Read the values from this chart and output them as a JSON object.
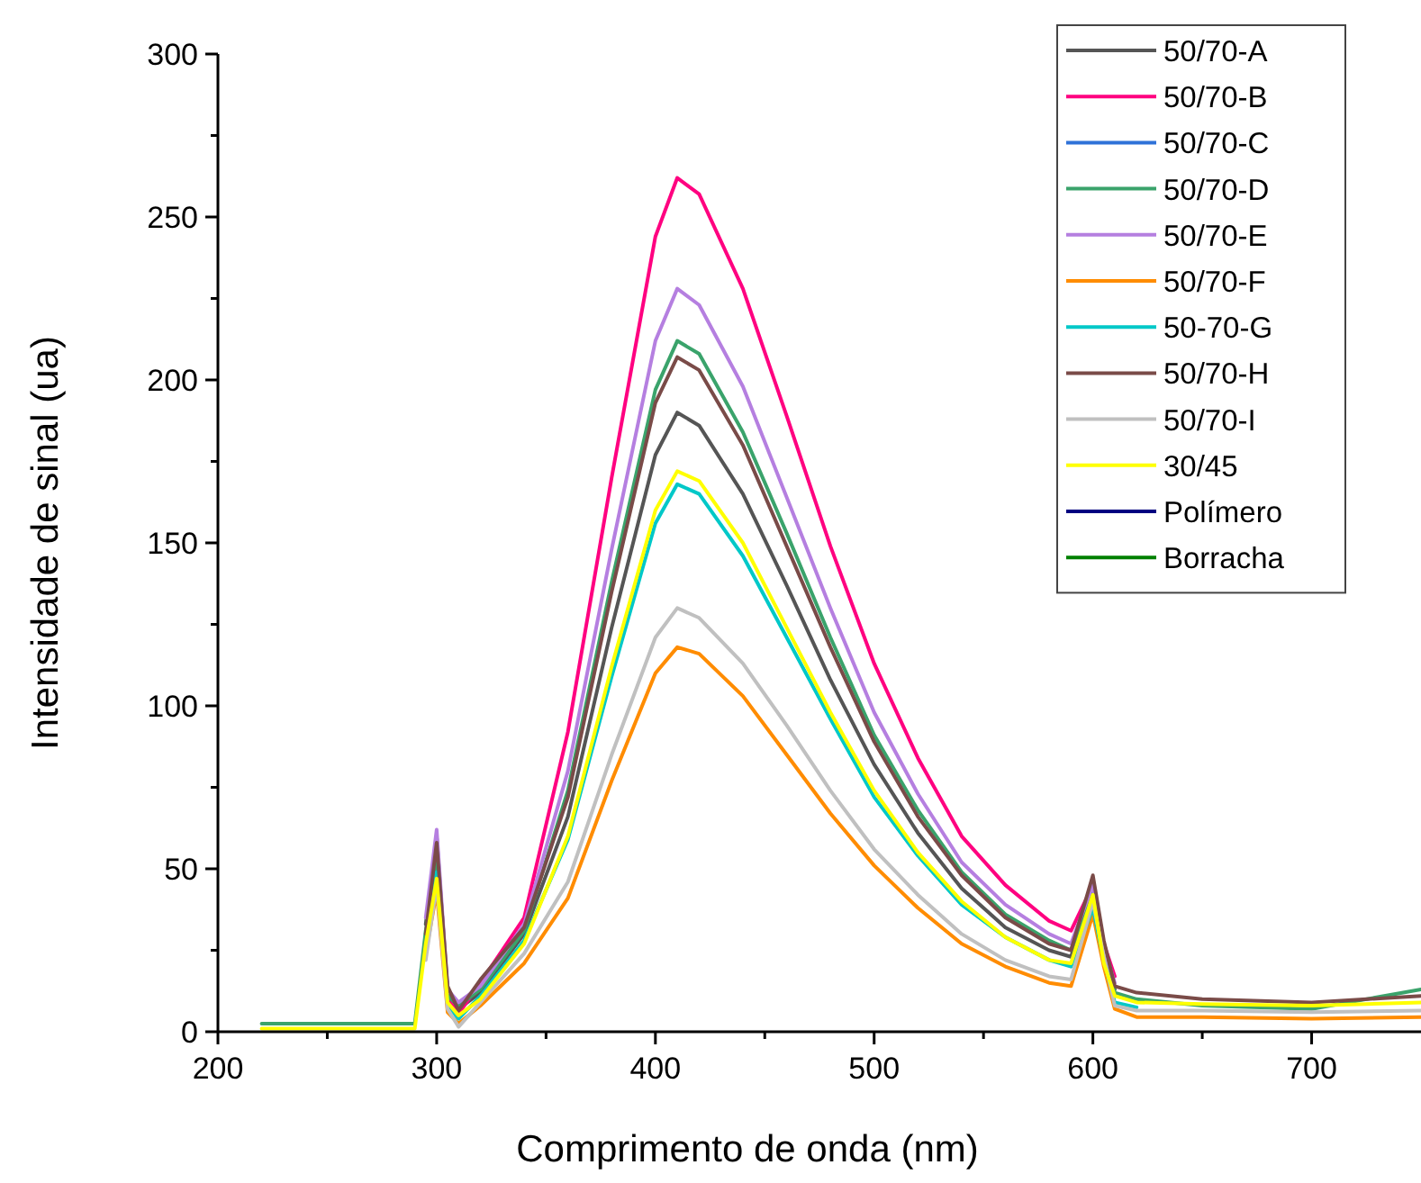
{
  "chart_data": {
    "type": "line",
    "xlabel": "Comprimento de onda (nm)",
    "ylabel": "Intensidade de sinal (ua)",
    "x": [
      220,
      240,
      260,
      280,
      290,
      295,
      300,
      305,
      310,
      320,
      340,
      360,
      380,
      400,
      410,
      420,
      440,
      460,
      480,
      500,
      520,
      540,
      560,
      580,
      590,
      600,
      605,
      610,
      620,
      650,
      700,
      750
    ],
    "series": [
      {
        "name": "50/70-A",
        "color": "#555555",
        "values": [
          null,
          null,
          null,
          null,
          null,
          33,
          60,
          12,
          7,
          12,
          30,
          66,
          124,
          177,
          190,
          186,
          165,
          137,
          108,
          82,
          61,
          44,
          32,
          25,
          23,
          45,
          25,
          13,
          null,
          null,
          null,
          null
        ]
      },
      {
        "name": "50/70-B",
        "color": "#ff0080",
        "values": [
          null,
          null,
          null,
          null,
          null,
          28,
          54,
          10,
          5.5,
          15,
          35,
          92,
          170,
          244,
          262,
          257,
          228,
          189,
          149,
          113,
          84,
          60,
          45,
          34,
          31,
          45,
          27,
          17,
          null,
          null,
          null,
          null
        ]
      },
      {
        "name": "50/70-C",
        "color": "#2f72d8",
        "values": [
          null,
          null,
          null,
          null,
          null,
          null,
          null,
          null,
          null,
          null,
          null,
          null,
          null,
          null,
          null,
          null,
          null,
          null,
          null,
          null,
          null,
          null,
          null,
          null,
          null,
          null,
          null,
          null,
          null,
          null,
          null,
          null
        ]
      },
      {
        "name": "50/70-D",
        "color": "#3aa36b",
        "values": [
          2.5,
          2.5,
          2.5,
          2.5,
          2.5,
          31,
          52,
          11,
          8,
          13,
          31,
          74,
          138,
          197,
          212,
          208,
          184,
          153,
          121,
          91,
          68,
          49,
          36,
          28,
          25,
          44,
          24,
          12,
          10,
          8,
          7,
          13
        ]
      },
      {
        "name": "50/70-E",
        "color": "#b57fe0",
        "values": [
          null,
          null,
          null,
          null,
          null,
          35,
          62,
          13,
          9,
          14,
          33,
          80,
          148,
          212,
          228,
          223,
          198,
          164,
          130,
          98,
          73,
          52,
          39,
          30,
          27,
          45,
          26,
          15,
          null,
          null,
          null,
          null
        ]
      },
      {
        "name": "50/70-F",
        "color": "#ff8c00",
        "values": [
          null,
          null,
          null,
          null,
          null,
          24,
          43,
          6,
          2.5,
          8,
          21,
          41,
          77,
          110,
          118,
          116,
          103,
          85,
          67,
          51,
          38,
          27,
          20,
          15,
          14,
          36,
          20,
          7,
          4.5,
          4.5,
          4,
          4.5
        ]
      },
      {
        "name": "50-70-G",
        "color": "#00c8c8",
        "values": [
          null,
          null,
          null,
          null,
          null,
          26,
          49,
          8,
          4,
          11,
          28,
          59,
          109,
          156,
          168,
          165,
          146,
          121,
          96,
          72,
          54,
          39,
          29,
          22,
          20,
          38,
          22,
          9,
          7.5,
          null,
          null,
          null
        ]
      },
      {
        "name": "50/70-H",
        "color": "#7a4b48",
        "values": [
          null,
          null,
          null,
          null,
          null,
          30,
          58,
          14,
          6.5,
          16,
          32,
          72,
          135,
          193,
          207,
          203,
          180,
          149,
          118,
          89,
          66,
          48,
          35,
          27,
          25,
          48,
          28,
          14,
          12,
          10,
          9,
          11
        ]
      },
      {
        "name": "50/70-I",
        "color": "#c0c0c0",
        "values": [
          null,
          null,
          null,
          null,
          null,
          22,
          45,
          7,
          1.5,
          9,
          24,
          46,
          85,
          121,
          130,
          127,
          113,
          94,
          74,
          56,
          42,
          30,
          22,
          17,
          16,
          40,
          23,
          8,
          6.5,
          6.5,
          6,
          6.5
        ]
      },
      {
        "name": "30/45",
        "color": "#ffff00",
        "values": [
          1,
          1,
          1,
          1,
          1,
          27,
          47,
          9,
          5,
          10,
          27,
          60,
          112,
          160,
          172,
          169,
          150,
          124,
          98,
          74,
          55,
          40,
          29,
          22,
          21,
          42,
          21,
          11,
          9,
          8.5,
          8,
          9
        ]
      },
      {
        "name": "Polímero",
        "color": "#000080",
        "values": [
          null,
          null,
          null,
          null,
          null,
          null,
          null,
          null,
          null,
          null,
          null,
          null,
          null,
          null,
          null,
          null,
          null,
          null,
          null,
          null,
          null,
          null,
          null,
          null,
          null,
          null,
          null,
          null,
          null,
          null,
          null,
          null
        ]
      },
      {
        "name": "Borracha",
        "color": "#008000",
        "values": [
          null,
          null,
          null,
          null,
          null,
          null,
          null,
          null,
          null,
          null,
          null,
          null,
          null,
          null,
          null,
          null,
          null,
          null,
          null,
          null,
          null,
          null,
          null,
          null,
          null,
          null,
          null,
          null,
          null,
          null,
          null,
          null
        ]
      }
    ],
    "xlim": [
      200,
      750
    ],
    "xticks": [
      200,
      {
        "value": 250,
        "label": null
      },
      300,
      {
        "value": 350,
        "label": null
      },
      400,
      {
        "value": 450,
        "label": null
      },
      500,
      {
        "value": 550,
        "label": null
      },
      600,
      {
        "value": 650,
        "label": null
      },
      700
    ],
    "ylim": [
      0,
      300
    ],
    "yticks": [
      0,
      {
        "value": 25,
        "label": null
      },
      50,
      {
        "value": 75,
        "label": null
      },
      100,
      {
        "value": 125,
        "label": null
      },
      150,
      {
        "value": 175,
        "label": null
      },
      200,
      {
        "value": 225,
        "label": null
      },
      250,
      {
        "value": 275,
        "label": null
      },
      300
    ],
    "grid": false,
    "legend": "top right",
    "line_style": "solid"
  }
}
